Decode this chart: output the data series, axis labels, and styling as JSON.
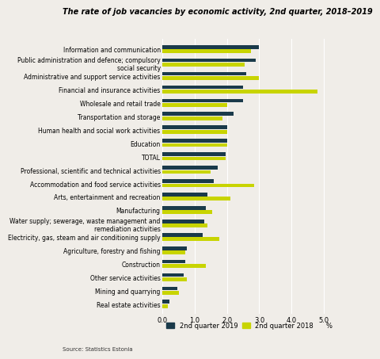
{
  "title": "The rate of job vacancies by economic activity, 2nd quarter, 2018–2019",
  "categories": [
    "Information and communication",
    "Public administration and defence; compulsory\nsocial security",
    "Administrative and support service activities",
    "Financial and insurance activities",
    "Wholesale and retail trade",
    "Transportation and storage",
    "Human health and social work activities",
    "Education",
    "TOTAL",
    "Professional, scientific and technical activities",
    "Accommodation and food service activities",
    "Arts, entertainment and recreation",
    "Manufacturing",
    "Water supply; sewerage, waste management and\nremediation activities",
    "Electricity, gas, steam and air conditioning supply",
    "Agriculture, forestry and fishing",
    "Construction",
    "Other service activities",
    "Mining and quarrying",
    "Real estate activities"
  ],
  "values_2019": [
    3.0,
    2.9,
    2.6,
    2.5,
    2.5,
    2.2,
    2.0,
    2.0,
    1.95,
    1.7,
    1.6,
    1.4,
    1.35,
    1.3,
    1.25,
    0.75,
    0.7,
    0.65,
    0.45,
    0.2
  ],
  "values_2018": [
    2.75,
    2.55,
    3.0,
    4.8,
    2.0,
    1.85,
    2.0,
    2.0,
    1.95,
    1.5,
    2.85,
    2.1,
    1.55,
    1.4,
    1.75,
    0.7,
    1.35,
    0.75,
    0.5,
    0.15
  ],
  "color_2019": "#1a3a4a",
  "color_2018": "#c8d400",
  "xlim": [
    0,
    5.25
  ],
  "xticks": [
    0.0,
    1.0,
    2.0,
    3.0,
    4.0,
    5.0
  ],
  "xtick_labels": [
    "0.0",
    "1.0",
    "2.0",
    "3.0",
    "4.0",
    "5.0"
  ],
  "xlabel": "%",
  "legend_2019": "2nd quarter 2019",
  "legend_2018": "2nd quarter 2018",
  "source": "Source: Statistics Estonia",
  "background_color": "#f0ede8",
  "title_fontsize": 7.0,
  "label_fontsize": 5.5,
  "tick_fontsize": 6.0,
  "bar_height": 0.28,
  "bar_gap": 0.04
}
